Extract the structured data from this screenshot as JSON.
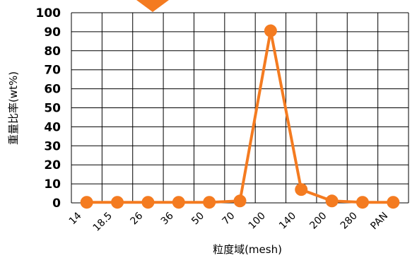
{
  "chart_data": {
    "type": "line",
    "categories": [
      "14",
      "18.5",
      "26",
      "36",
      "50",
      "70",
      "100",
      "140",
      "200",
      "280",
      "PAN"
    ],
    "point_x": [
      0.5,
      1.5,
      2.5,
      3.5,
      4.5,
      5.5,
      6.5,
      7.5,
      8.5,
      9.5,
      10.5
    ],
    "values": [
      0.3,
      0.3,
      0.3,
      0.3,
      0.3,
      1,
      90.5,
      7,
      1,
      0.3,
      0.3
    ],
    "ylim": [
      0,
      100
    ],
    "yticks": [
      0,
      10,
      20,
      30,
      40,
      50,
      60,
      70,
      80,
      90,
      100
    ],
    "xlabel": "粒度域(mesh)",
    "ylabel": "重量比率(wt%)",
    "grid": true,
    "line_color": "#f47b20",
    "marker_color": "#f47b20"
  }
}
